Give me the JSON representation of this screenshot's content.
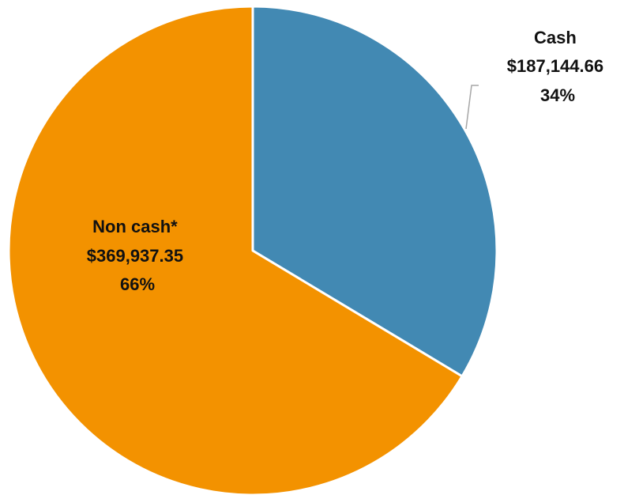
{
  "chart_data": {
    "type": "pie",
    "title": "",
    "slices": [
      {
        "name": "Cash",
        "value": 187144.66,
        "value_label": "$187,144.66",
        "percent_label": "34%",
        "color": "#4289b3"
      },
      {
        "name": "Non cash*",
        "value": 369937.35,
        "value_label": "$369,937.35",
        "percent_label": "66%",
        "color": "#f39200"
      }
    ],
    "start_angle": "12 o'clock",
    "direction": "clockwise",
    "legend": "none"
  }
}
